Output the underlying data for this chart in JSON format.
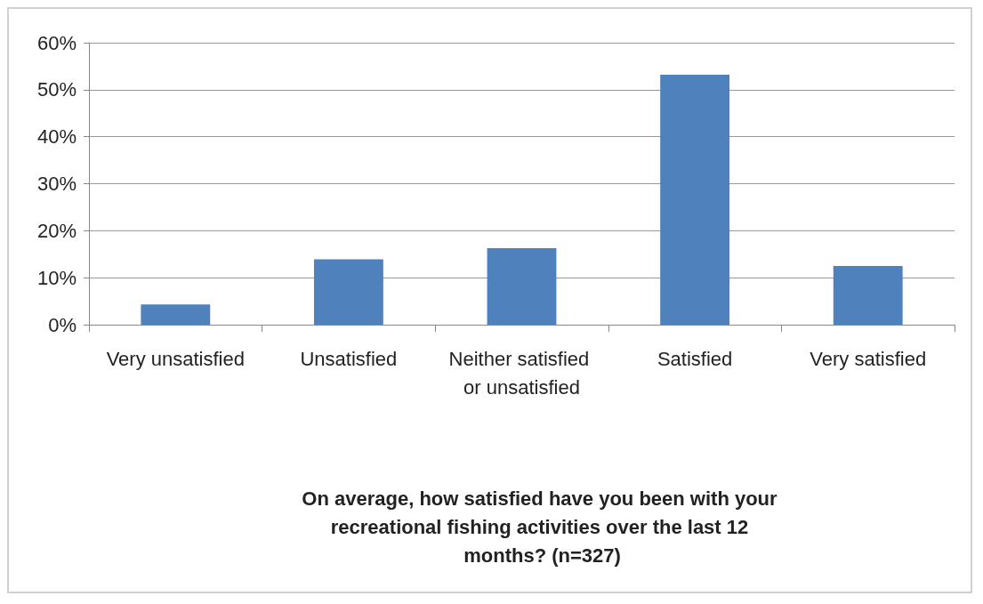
{
  "chart_data": {
    "type": "bar",
    "xlabel": "On average, how satisfied have you been with your recreational fishing activities over the last 12 months? (n=327)",
    "categories": [
      "Very unsatisfied",
      "Unsatisfied",
      "Neither satisfied or unsatisfied",
      "Satisfied",
      "Very satisfied"
    ],
    "values": [
      4.3,
      13.9,
      16.3,
      53.2,
      12.5
    ],
    "color": "#4f81bd",
    "ylim": [
      0,
      60
    ],
    "yticks": [
      {
        "value": 0,
        "label": "0%"
      },
      {
        "value": 10,
        "label": "10%"
      },
      {
        "value": 20,
        "label": "20%"
      },
      {
        "value": 30,
        "label": "30%"
      },
      {
        "value": 40,
        "label": "40%"
      },
      {
        "value": 50,
        "label": "50%"
      },
      {
        "value": 60,
        "label": "60%"
      }
    ],
    "grid": "y"
  }
}
